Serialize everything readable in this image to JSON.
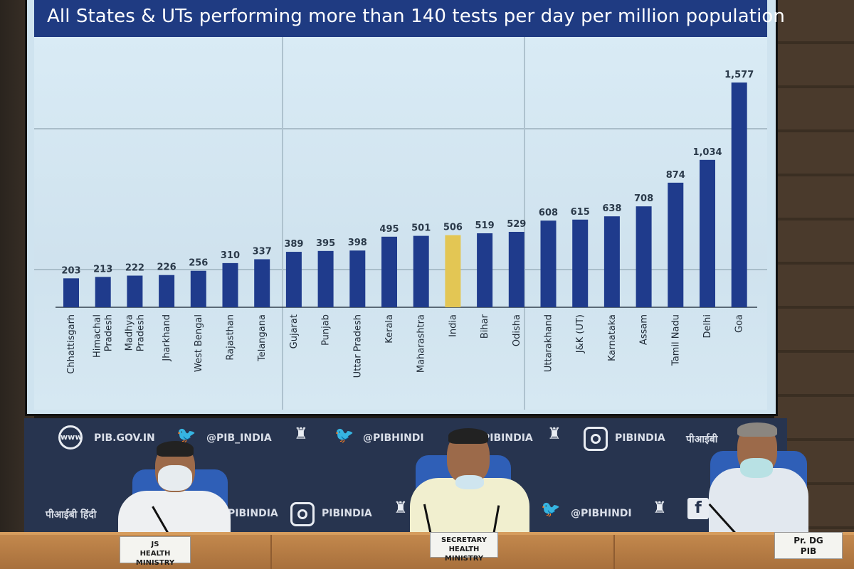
{
  "slide": {
    "title": "All States & UTs performing more than 140 tests per day per million population"
  },
  "chart_data": {
    "type": "bar",
    "title": "All States & UTs performing more than 140 tests per day per million population",
    "categories": [
      "Chhattisgarh",
      "Himachal Pradesh",
      "Madhya Pradesh",
      "Jharkhand",
      "West Bengal",
      "Rajasthan",
      "Telangana",
      "Gujarat",
      "Punjab",
      "Uttar Pradesh",
      "Kerala",
      "Maharashtra",
      "India",
      "Bihar",
      "Odisha",
      "Uttarakhand",
      "J&K (UT)",
      "Karnataka",
      "Assam",
      "Tamil Nadu",
      "Delhi",
      "Goa"
    ],
    "category_lines": [
      [
        "Chhattisgarh"
      ],
      [
        "Himachal",
        "Pradesh"
      ],
      [
        "Madhya",
        "Pradesh"
      ],
      [
        "Jharkhand"
      ],
      [
        "West Bengal"
      ],
      [
        "Rajasthan"
      ],
      [
        "Telangana"
      ],
      [
        "Gujarat"
      ],
      [
        "Punjab"
      ],
      [
        "Uttar Pradesh"
      ],
      [
        "Kerala"
      ],
      [
        "Maharashtra"
      ],
      [
        "India"
      ],
      [
        "Bihar"
      ],
      [
        "Odisha"
      ],
      [
        "Uttarakhand"
      ],
      [
        "J&K (UT)"
      ],
      [
        "Karnataka"
      ],
      [
        "Assam"
      ],
      [
        "Tamil Nadu"
      ],
      [
        "Delhi"
      ],
      [
        "Goa"
      ]
    ],
    "values": [
      203,
      213,
      222,
      226,
      256,
      310,
      337,
      389,
      395,
      398,
      495,
      501,
      506,
      519,
      529,
      608,
      615,
      638,
      708,
      874,
      1034,
      1577
    ],
    "value_labels": [
      "203",
      "213",
      "222",
      "226",
      "256",
      "310",
      "337",
      "389",
      "395",
      "398",
      "495",
      "501",
      "506",
      "519",
      "529",
      "608",
      "615",
      "638",
      "708",
      "874",
      "1,034",
      "1,577"
    ],
    "highlight_category": "India",
    "colors": {
      "bar": "#1f3b8c",
      "highlight": "#e3c654",
      "label": "#2b3a4a"
    },
    "xlabel": "",
    "ylabel": "",
    "grid": false
  },
  "backdrop": {
    "row1": [
      "PIB.GOV.IN",
      "@PIB_INDIA",
      "@PIBHINDI",
      "PIBINDIA",
      "PIBINDIA",
      "पीआईबी"
    ],
    "row2": [
      "पीआईबी हिंदी",
      "PIBINDIA",
      "PIBINDIA",
      "@PIBHINDI"
    ],
    "icons": [
      "www-globe-icon",
      "twitter-bird-icon",
      "national-emblem-icon",
      "instagram-icon",
      "facebook-icon"
    ]
  },
  "nameplates": {
    "left": [
      "JS",
      "HEALTH MINISTRY"
    ],
    "center": [
      "SECRETARY",
      "HEALTH MINISTRY"
    ],
    "right": [
      "Pr. DG",
      "PIB"
    ]
  }
}
